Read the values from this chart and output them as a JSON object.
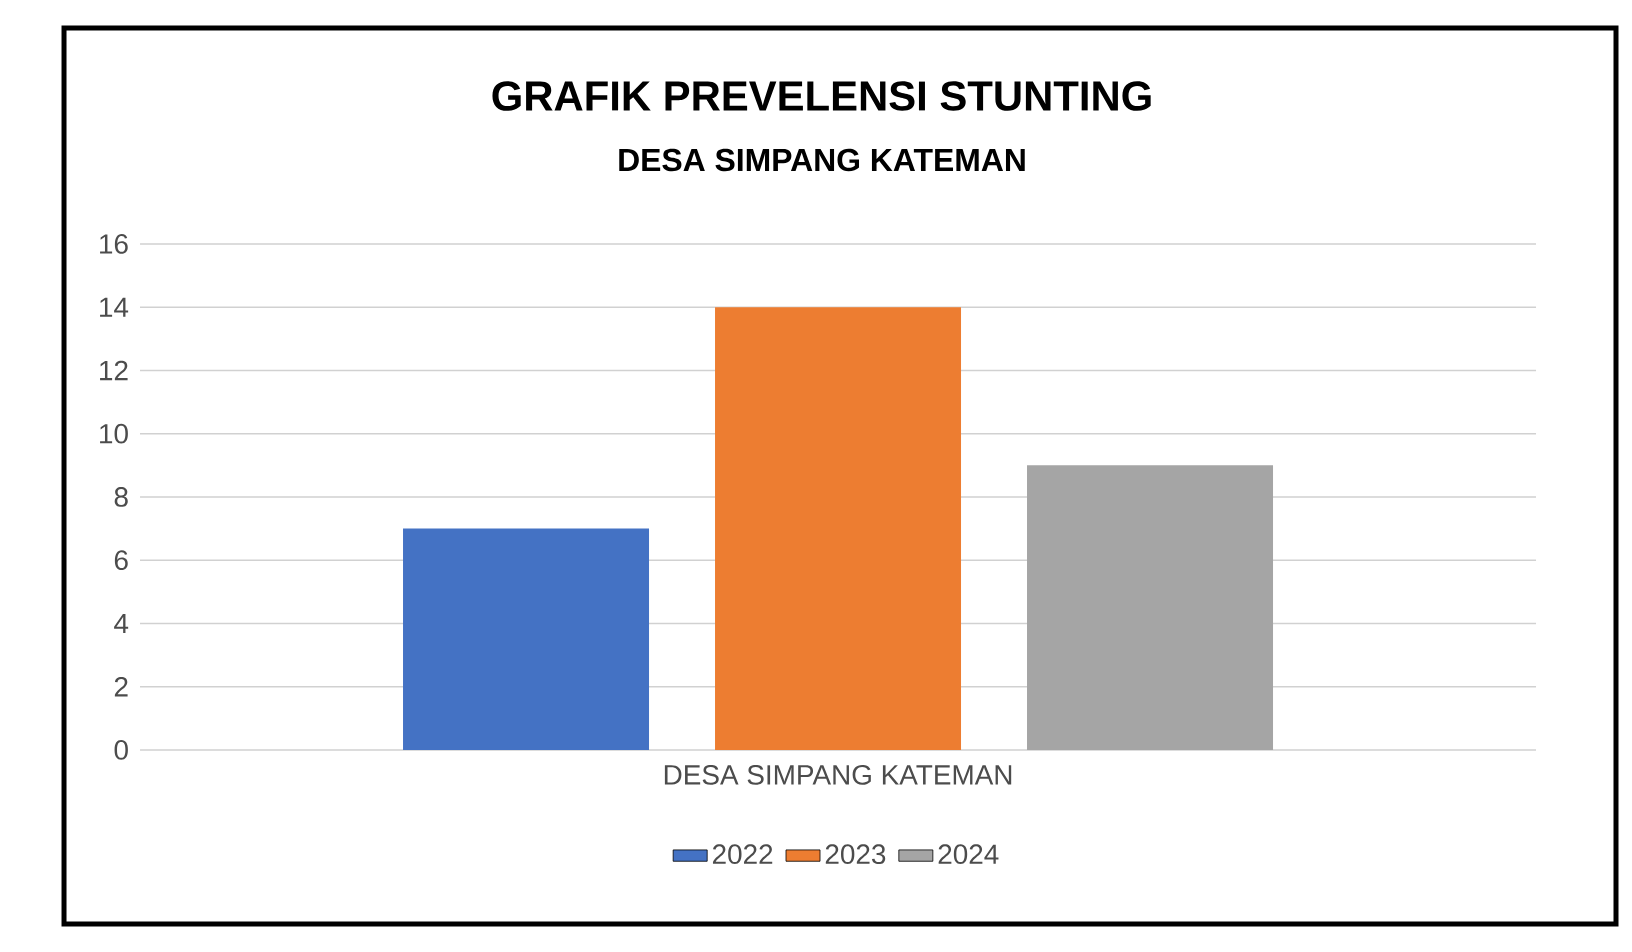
{
  "chart_data": {
    "type": "bar",
    "title": "GRAFIK PREVELENSI STUNTING",
    "subtitle": "DESA SIMPANG KATEMAN",
    "categories": [
      "DESA SIMPANG KATEMAN"
    ],
    "series": [
      {
        "name": "2022",
        "color": "#4472c4",
        "values": [
          7
        ]
      },
      {
        "name": "2023",
        "color": "#ed7d31",
        "values": [
          14
        ]
      },
      {
        "name": "2024",
        "color": "#a5a5a5",
        "values": [
          9
        ]
      }
    ],
    "ylim": [
      0,
      16
    ],
    "yticks": [
      0,
      2,
      4,
      6,
      8,
      10,
      12,
      14,
      16
    ],
    "grid": "y",
    "legend": "bottom"
  }
}
